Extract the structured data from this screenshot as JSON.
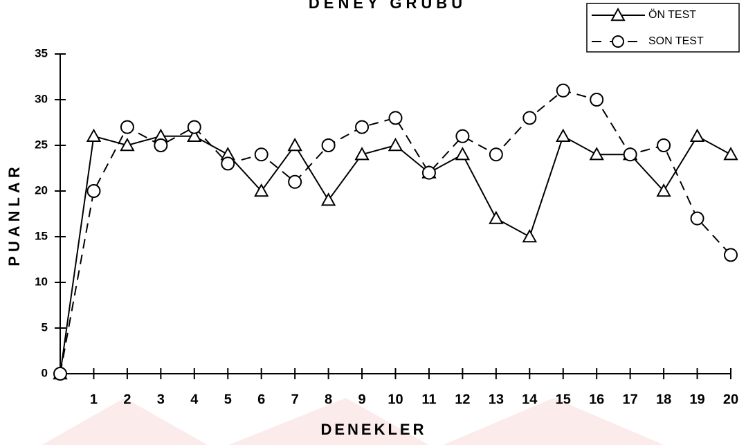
{
  "chart_data": {
    "type": "line",
    "title": "DENEY GRUBU",
    "xlabel": "DENEKLER",
    "ylabel": "PUANLAR",
    "x": [
      0,
      1,
      2,
      3,
      4,
      5,
      6,
      7,
      8,
      9,
      10,
      11,
      12,
      13,
      14,
      15,
      16,
      17,
      18,
      19,
      20
    ],
    "xlim": [
      0,
      20
    ],
    "xticks": [
      1,
      2,
      3,
      4,
      5,
      6,
      7,
      8,
      9,
      10,
      11,
      12,
      13,
      14,
      15,
      16,
      17,
      18,
      19,
      20
    ],
    "ylim": [
      0,
      35
    ],
    "yticks": [
      0,
      5,
      10,
      15,
      20,
      25,
      30,
      35
    ],
    "legend": "top-right",
    "series": [
      {
        "name": "ÖN TEST",
        "color": "#000000",
        "values": [
          0,
          26,
          25,
          26,
          26,
          24,
          20,
          25,
          19,
          24,
          25,
          22,
          24,
          17,
          15,
          26,
          24,
          24,
          20,
          26,
          24
        ]
      },
      {
        "name": "SON TEST",
        "color": "#000000",
        "values": [
          0,
          20,
          27,
          25,
          27,
          23,
          24,
          21,
          25,
          27,
          28,
          22,
          26,
          24,
          28,
          31,
          30,
          24,
          25,
          17,
          13
        ]
      }
    ]
  }
}
